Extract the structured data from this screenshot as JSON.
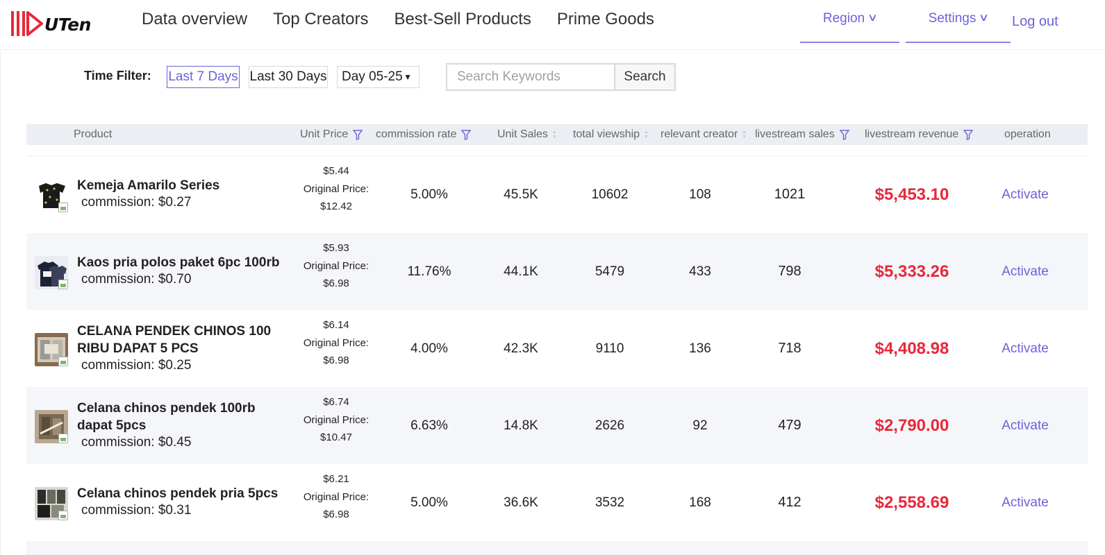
{
  "header": {
    "logo_text": "UTen",
    "nav": [
      "Data overview",
      "Top Creators",
      "Best-Sell Products",
      "Prime Goods"
    ],
    "region_label": "Region",
    "settings_label": "Settings",
    "logout_label": "Log out",
    "accent_color": "#6c63d8"
  },
  "filter": {
    "label": "Time Filter:",
    "options": [
      "Last 7 Days",
      "Last 30 Days"
    ],
    "active": "Last 7 Days",
    "day_select": "Day 05-25",
    "search_placeholder": "Search Keywords",
    "search_button": "Search"
  },
  "table": {
    "columns": {
      "product": "Product",
      "unit_price": "Unit Price",
      "commission_rate": "commission rate",
      "unit_sales": "Unit Sales",
      "total_viewship": "total viewship",
      "relevant_creator": "relevant creator",
      "livestream_sales": "livestream sales",
      "livestream_revenue": "livestream revenue",
      "operation": "operation"
    },
    "rows": [
      {
        "name": "Kemeja Amarilo Series",
        "commission": "commission: $0.27",
        "price": "$5.44",
        "original_label": "Original Price:",
        "original_price": "$12.42",
        "commission_rate": "5.00%",
        "unit_sales": "45.5K",
        "total_viewship": "10602",
        "relevant_creator": "108",
        "livestream_sales": "1021",
        "livestream_revenue": "$5,453.10",
        "operation": "Activate"
      },
      {
        "name": "Kaos pria polos paket 6pc 100rb",
        "commission": "commission: $0.70",
        "price": "$5.93",
        "original_label": "Original Price:",
        "original_price": "$6.98",
        "commission_rate": "11.76%",
        "unit_sales": "44.1K",
        "total_viewship": "5479",
        "relevant_creator": "433",
        "livestream_sales": "798",
        "livestream_revenue": "$5,333.26",
        "operation": "Activate"
      },
      {
        "name": "CELANA PENDEK CHINOS 100 RIBU DAPAT 5 PCS",
        "commission": "commission: $0.25",
        "price": "$6.14",
        "original_label": "Original Price:",
        "original_price": "$6.98",
        "commission_rate": "4.00%",
        "unit_sales": "42.3K",
        "total_viewship": "9110",
        "relevant_creator": "136",
        "livestream_sales": "718",
        "livestream_revenue": "$4,408.98",
        "operation": "Activate"
      },
      {
        "name": "Celana chinos pendek 100rb dapat 5pcs",
        "commission": "commission: $0.45",
        "price": "$6.74",
        "original_label": "Original Price:",
        "original_price": "$10.47",
        "commission_rate": "6.63%",
        "unit_sales": "14.8K",
        "total_viewship": "2626",
        "relevant_creator": "92",
        "livestream_sales": "479",
        "livestream_revenue": "$2,790.00",
        "operation": "Activate"
      },
      {
        "name": "Celana chinos pendek pria 5pcs",
        "commission": "commission: $0.31",
        "price": "$6.21",
        "original_label": "Original Price:",
        "original_price": "$6.98",
        "commission_rate": "5.00%",
        "unit_sales": "36.6K",
        "total_viewship": "3532",
        "relevant_creator": "168",
        "livestream_sales": "412",
        "livestream_revenue": "$2,558.69",
        "operation": "Activate"
      }
    ]
  }
}
